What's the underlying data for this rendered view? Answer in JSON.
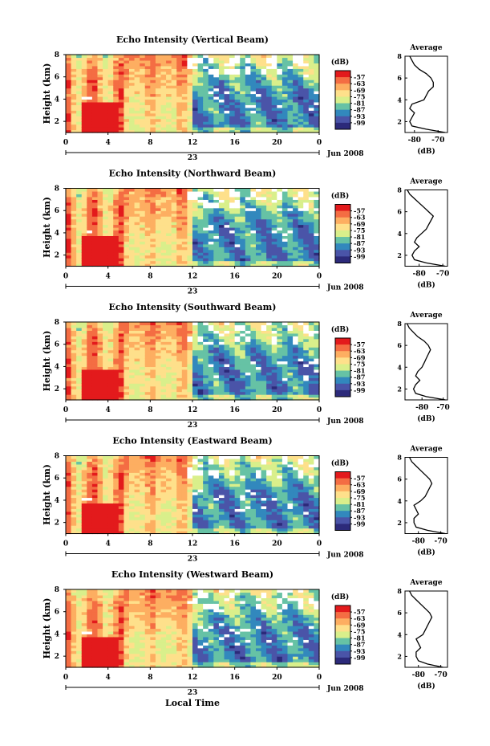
{
  "colorscale": {
    "unit_label": "(dB)",
    "tick_labels": [
      "-57",
      "-63",
      "-69",
      "-75",
      "-81",
      "-87",
      "-93",
      "-99"
    ],
    "colors": [
      "#e31a1c",
      "#f46d43",
      "#fdae61",
      "#fee08b",
      "#d9ef8b",
      "#66c2a5",
      "#3288bd",
      "#4a54a8",
      "#2c2a7a"
    ]
  },
  "shared": {
    "ylabel": "Height (km)",
    "date_label": "Jun 2008",
    "day_label": "23",
    "xlabel": "Local Time",
    "avg_title": "Average",
    "avg_xlabel": "(dB)"
  },
  "chart_data": [
    {
      "type": "heatmap",
      "title": "Echo Intensity (Vertical Beam)",
      "x_ticks": [
        "0",
        "4",
        "8",
        "12",
        "16",
        "20",
        "0"
      ],
      "y_ticks": [
        "2",
        "4",
        "6",
        "8"
      ],
      "xlim": [
        0,
        24
      ],
      "ylim": [
        1,
        8
      ],
      "avg_profile": {
        "x_ticks": [
          "-80",
          "-70"
        ],
        "xlim": [
          -84,
          -66
        ],
        "height": [
          1.0,
          1.3,
          1.6,
          2.0,
          2.4,
          2.8,
          3.2,
          3.6,
          4.0,
          4.4,
          4.8,
          5.2,
          5.6,
          6.0,
          6.4,
          6.8,
          7.2,
          7.6,
          8.0
        ],
        "value": [
          -67,
          -75,
          -81,
          -82,
          -81,
          -80,
          -82,
          -81,
          -76,
          -75,
          -74,
          -72,
          -72,
          -73,
          -75,
          -78,
          -80,
          -81,
          -82
        ]
      }
    },
    {
      "type": "heatmap",
      "title": "Echo Intensity (Northward Beam)",
      "x_ticks": [
        "0",
        "4",
        "8",
        "12",
        "16",
        "20",
        "0"
      ],
      "y_ticks": [
        "2",
        "4",
        "6",
        "8"
      ],
      "xlim": [
        0,
        24
      ],
      "ylim": [
        1,
        8
      ],
      "avg_profile": {
        "x_ticks": [
          "-80",
          "-70"
        ],
        "xlim": [
          -86,
          -68
        ],
        "height": [
          1.0,
          1.3,
          1.6,
          2.0,
          2.4,
          2.8,
          3.2,
          3.6,
          4.0,
          4.4,
          4.8,
          5.2,
          5.6,
          6.0,
          6.4,
          6.8,
          7.2,
          7.6,
          8.0
        ],
        "value": [
          -69,
          -77,
          -82,
          -83,
          -82,
          -80,
          -82,
          -81,
          -79,
          -77,
          -76,
          -75,
          -74,
          -76,
          -78,
          -80,
          -82,
          -84,
          -85
        ]
      }
    },
    {
      "type": "heatmap",
      "title": "Echo Intensity (Southward Beam)",
      "x_ticks": [
        "0",
        "4",
        "8",
        "12",
        "16",
        "20",
        "0"
      ],
      "y_ticks": [
        "2",
        "4",
        "6",
        "8"
      ],
      "xlim": [
        0,
        24
      ],
      "ylim": [
        1,
        8
      ],
      "avg_profile": {
        "x_ticks": [
          "-80",
          "-70"
        ],
        "xlim": [
          -88,
          -68
        ],
        "height": [
          1.0,
          1.3,
          1.6,
          2.0,
          2.4,
          2.8,
          3.2,
          3.6,
          4.0,
          4.4,
          4.8,
          5.2,
          5.6,
          6.0,
          6.4,
          6.8,
          7.2,
          7.6,
          8.0
        ],
        "value": [
          -69,
          -78,
          -83,
          -84,
          -83,
          -81,
          -83,
          -82,
          -80,
          -79,
          -78,
          -77,
          -76,
          -77,
          -79,
          -82,
          -84,
          -86,
          -87
        ]
      }
    },
    {
      "type": "heatmap",
      "title": "Echo Intensity (Eastward Beam)",
      "x_ticks": [
        "0",
        "4",
        "8",
        "12",
        "16",
        "20",
        "0"
      ],
      "y_ticks": [
        "2",
        "4",
        "6",
        "8"
      ],
      "xlim": [
        0,
        24
      ],
      "ylim": [
        1,
        8
      ],
      "avg_profile": {
        "x_ticks": [
          "-80",
          "-70"
        ],
        "xlim": [
          -86,
          -67
        ],
        "height": [
          1.0,
          1.3,
          1.6,
          2.0,
          2.4,
          2.8,
          3.2,
          3.6,
          4.0,
          4.4,
          4.8,
          5.2,
          5.6,
          6.0,
          6.4,
          6.8,
          7.2,
          7.6,
          8.0
        ],
        "value": [
          -68,
          -76,
          -81,
          -82,
          -82,
          -80,
          -81,
          -82,
          -79,
          -77,
          -76,
          -75,
          -74,
          -75,
          -77,
          -79,
          -81,
          -83,
          -84
        ]
      }
    },
    {
      "type": "heatmap",
      "title": "Echo Intensity (Westward Beam)",
      "x_ticks": [
        "0",
        "4",
        "8",
        "12",
        "16",
        "20",
        "0"
      ],
      "y_ticks": [
        "2",
        "4",
        "6",
        "8"
      ],
      "xlim": [
        0,
        24
      ],
      "ylim": [
        1,
        8
      ],
      "avg_profile": {
        "x_ticks": [
          "-80",
          "-70"
        ],
        "xlim": [
          -86,
          -67
        ],
        "height": [
          1.0,
          1.3,
          1.6,
          2.0,
          2.4,
          2.8,
          3.2,
          3.6,
          4.0,
          4.4,
          4.8,
          5.2,
          5.6,
          6.0,
          6.4,
          6.8,
          7.2,
          7.6,
          8.0
        ],
        "value": [
          -69,
          -76,
          -80,
          -81,
          -81,
          -79,
          -80,
          -81,
          -78,
          -77,
          -76,
          -75,
          -74,
          -75,
          -77,
          -79,
          -81,
          -83,
          -84
        ]
      }
    }
  ]
}
